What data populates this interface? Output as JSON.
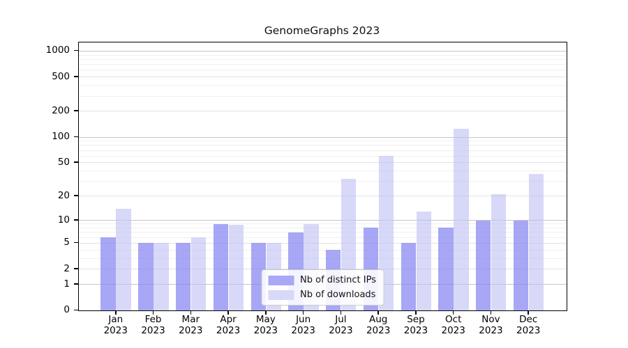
{
  "chart_data": {
    "type": "bar",
    "title": "GenomeGraphs 2023",
    "categories": [
      "Jan",
      "Feb",
      "Mar",
      "Apr",
      "May",
      "Jun",
      "Jul",
      "Aug",
      "Sep",
      "Oct",
      "Nov",
      "Dec"
    ],
    "category_year": "2023",
    "series": [
      {
        "name": "Nb of distinct IPs",
        "color": "#a8a8f6",
        "fill": "rgba(130,130,242,0.7)",
        "values": [
          6,
          5,
          5,
          9,
          5,
          7,
          4,
          8,
          5,
          8,
          10,
          10
        ]
      },
      {
        "name": "Nb of downloads",
        "color": "#d8d8f8",
        "fill": "rgba(190,190,245,0.6)",
        "values": [
          14,
          5,
          6,
          8.8,
          5,
          9,
          32,
          60,
          13,
          125,
          21,
          37
        ]
      }
    ],
    "y_scale": "log10(value+1)",
    "y_ticks": [
      0,
      1,
      2,
      5,
      10,
      20,
      50,
      100,
      200,
      500,
      1000
    ],
    "y_tick_labels": [
      "0",
      "1",
      "2",
      "5",
      "10",
      "20",
      "50",
      "100",
      "200",
      "500",
      "1000"
    ],
    "ylim_top": 1265,
    "grid": true,
    "gridline_colors": {
      "decade": "#c6c6c6",
      "labeled": "#e2e2e2",
      "minor": "#f0f0f0"
    },
    "legend_position": "lower center"
  }
}
